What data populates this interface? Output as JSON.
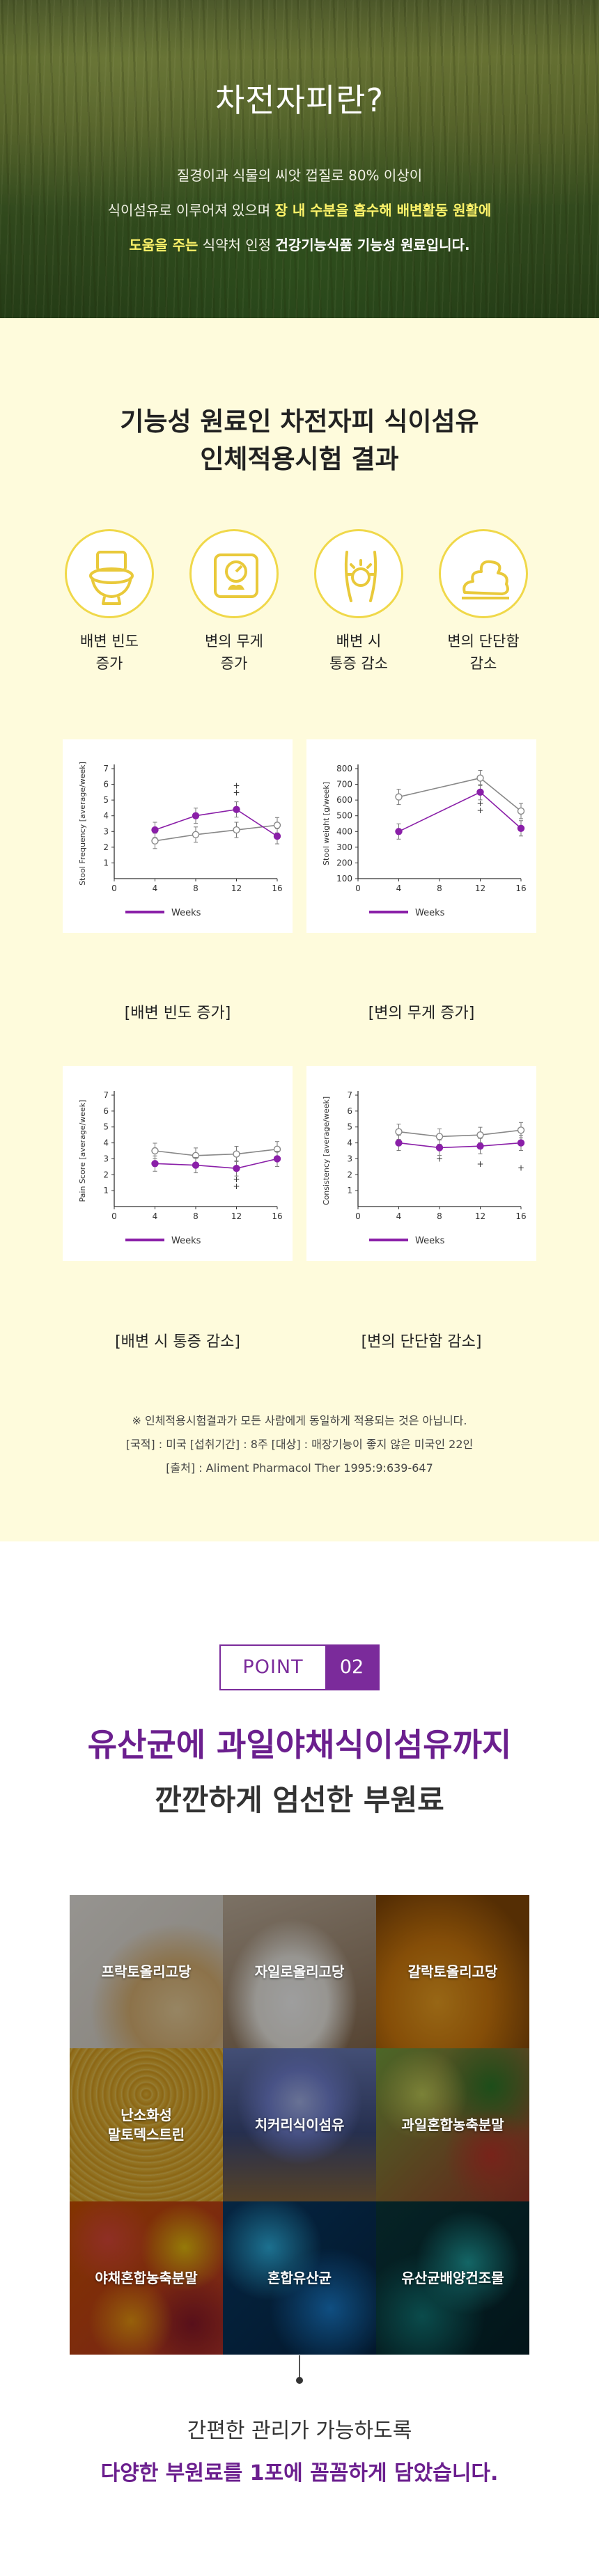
{
  "hero": {
    "title": "차전자피란?",
    "line1": "질경이과 식물의 씨앗 껍질로 80% 이상이",
    "line2_plain": "식이섬유로 이루어져 있으며 ",
    "line2_highlight": "장 내 수분을 흡수해 배변활동 원활에",
    "line3_highlight": "도움을 주는",
    "line3_plain": " 식약처 인정 ",
    "line3_bold": "건강기능식품 기능성 원료입니다."
  },
  "study": {
    "title_line1": "기능성 원료인 차전자피 식이섬유",
    "title_line2": "인체적용시험 결과",
    "icons": [
      {
        "name": "toilet-icon",
        "line1": "배변 빈도",
        "line2": "증가"
      },
      {
        "name": "scale-icon",
        "line1": "변의 무게",
        "line2": "증가"
      },
      {
        "name": "abdominal-pain-icon",
        "line1": "배변 시",
        "line2": "통증 감소"
      },
      {
        "name": "stool-icon",
        "line1": "변의 단단함",
        "line2": "감소"
      }
    ],
    "note_line1": "※ 인체적용시험결과가 모든 사람에게 동일하게 적용되는 것은 아닙니다.",
    "note_line2": "[국적] : 미국  [섭취기간] : 8주  [대상] : 매장기능이 좋지 않은 미국인 22인",
    "note_line3": "[출처] : Aliment Pharmacol Ther 1995:9:639-647"
  },
  "chart_data": [
    {
      "type": "line",
      "caption": "[배변 빈도 증가]",
      "ylabel": "Stool Frequency [average/week]",
      "xlabel": "",
      "x": [
        4,
        8,
        12,
        16
      ],
      "xticks": [
        0,
        4,
        8,
        12,
        16
      ],
      "ylim": [
        0,
        7
      ],
      "yticks": [
        1,
        2,
        3,
        4,
        5,
        6,
        7
      ],
      "legend": "Weeks",
      "series": [
        {
          "values": [
            3.1,
            4.0,
            4.4,
            2.7
          ],
          "color": "#8a1fa8",
          "filled": true
        },
        {
          "values": [
            2.4,
            2.8,
            3.1,
            3.4
          ],
          "color": "#888888",
          "filled": false
        }
      ],
      "annotations": [
        "+",
        "+"
      ]
    },
    {
      "type": "line",
      "caption": "[변의 무게 증가]",
      "ylabel": "Stool weight [g/week]",
      "xlabel": "",
      "x": [
        4,
        12,
        16
      ],
      "xticks": [
        0,
        4,
        8,
        12,
        16
      ],
      "ylim": [
        100,
        800
      ],
      "yticks": [
        100,
        200,
        300,
        400,
        500,
        600,
        700,
        800
      ],
      "legend": "Weeks",
      "series": [
        {
          "values": [
            400,
            650,
            420
          ],
          "color": "#8a1fa8",
          "filled": true
        },
        {
          "values": [
            620,
            740,
            530
          ],
          "color": "#888888",
          "filled": false
        }
      ],
      "annotations": [
        "+",
        "+"
      ]
    },
    {
      "type": "line",
      "caption": "[배변 시 통증 감소]",
      "ylabel": "Pain Score [average/week]",
      "xlabel": "",
      "x": [
        4,
        8,
        12,
        16
      ],
      "xticks": [
        0,
        4,
        8,
        12,
        16
      ],
      "ylim": [
        0,
        7
      ],
      "yticks": [
        1,
        2,
        3,
        4,
        5,
        6,
        7
      ],
      "legend": "Weeks",
      "series": [
        {
          "values": [
            2.7,
            2.6,
            2.4,
            3.0
          ],
          "color": "#8a1fa8",
          "filled": true
        },
        {
          "values": [
            3.5,
            3.2,
            3.3,
            3.6
          ],
          "color": "#888888",
          "filled": false
        }
      ],
      "annotations": [
        "+",
        "+"
      ]
    },
    {
      "type": "line",
      "caption": "[변의 단단함 감소]",
      "ylabel": "Consistency [average/week]",
      "xlabel": "",
      "x": [
        4,
        8,
        12,
        16
      ],
      "xticks": [
        0,
        4,
        8,
        12,
        16
      ],
      "ylim": [
        0,
        7
      ],
      "yticks": [
        1,
        2,
        3,
        4,
        5,
        6,
        7
      ],
      "legend": "Weeks",
      "series": [
        {
          "values": [
            4.0,
            3.7,
            3.8,
            4.0
          ],
          "color": "#8a1fa8",
          "filled": true
        },
        {
          "values": [
            4.7,
            4.4,
            4.5,
            4.8
          ],
          "color": "#888888",
          "filled": false
        }
      ],
      "annotations": [
        "+",
        "+",
        "+"
      ]
    }
  ],
  "point": {
    "word": "POINT",
    "number": "02",
    "headline": "유산균에 과일야채식이섬유까지",
    "subheadline": "깐깐하게 엄선한 부원료",
    "ingredients": [
      {
        "line1": "프락토올리고당",
        "line2": ""
      },
      {
        "line1": "자일로올리고당",
        "line2": ""
      },
      {
        "line1": "갈락토올리고당",
        "line2": ""
      },
      {
        "line1": "난소화성",
        "line2": "말토덱스트린"
      },
      {
        "line1": "치커리식이섬유",
        "line2": ""
      },
      {
        "line1": "과일혼합농축분말",
        "line2": ""
      },
      {
        "line1": "야채혼합농축분말",
        "line2": ""
      },
      {
        "line1": "혼합유산균",
        "line2": ""
      },
      {
        "line1": "유산균배양건조물",
        "line2": ""
      }
    ],
    "bottom_line1": "간편한 관리가 가능하도록",
    "bottom_line2": "다양한 부원료를 1포에 꼼꼼하게 담았습니다."
  }
}
